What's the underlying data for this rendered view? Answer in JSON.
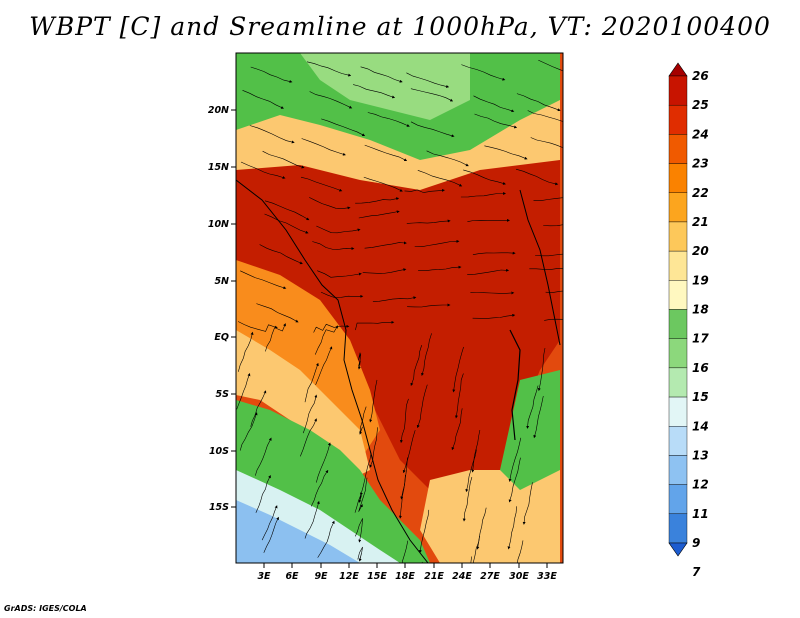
{
  "title": "WBPT [C] and Sreamline at 1000hPa, VT: 2020100400",
  "footer": "GrADS: IGES/COLA",
  "latitude_labels": [
    "20N",
    "15N",
    "10N",
    "5N",
    "EQ",
    "5S",
    "10S",
    "15S"
  ],
  "longitude_labels": [
    "3E",
    "6E",
    "9E",
    "12E",
    "15E",
    "18E",
    "21E",
    "24E",
    "27E",
    "30E",
    "33E"
  ],
  "colorbar": {
    "labels": [
      "26",
      "25",
      "24",
      "23",
      "22",
      "21",
      "20",
      "19",
      "18",
      "17",
      "16",
      "15",
      "14",
      "13",
      "12",
      "11",
      "9",
      "7"
    ],
    "colors": [
      "#a50000",
      "#c81400",
      "#e02d00",
      "#f05a00",
      "#fa8200",
      "#fca51e",
      "#fdc85a",
      "#fee696",
      "#fff8c0",
      "#6cc860",
      "#8cd87c",
      "#b4eab0",
      "#e2f6f6",
      "#b8dcf8",
      "#8ec2f2",
      "#62a4ea",
      "#3a82dc",
      "#1c5cd0"
    ]
  },
  "map_colors": {
    "hot": "#c41e00",
    "warm": "#e24a0e",
    "orange": "#f98c1c",
    "tan": "#fcc870",
    "cream": "#fde8a6",
    "green": "#52c048",
    "light_green": "#98dc80",
    "cyan": "#d8f2f2",
    "blue": "#8cc0f0",
    "streamline": "#000000"
  }
}
